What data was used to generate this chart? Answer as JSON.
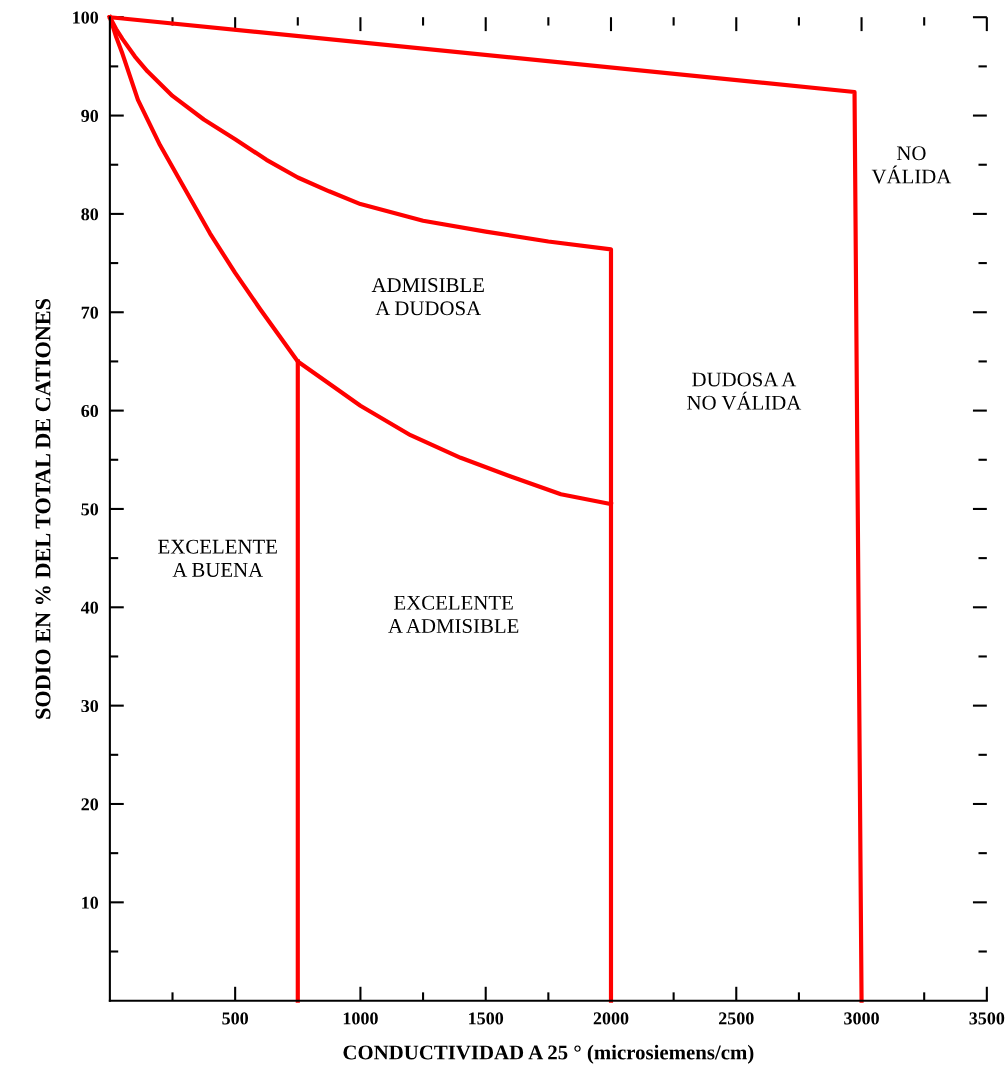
{
  "chart_data": {
    "type": "line",
    "xlabel": "CONDUCTIVIDAD A 25 ° (microsiemens/cm)",
    "ylabel": "SODIO EN % DEL TOTAL DE CATIONES",
    "xlim": [
      0,
      3500
    ],
    "ylim": [
      0,
      100
    ],
    "xticks": [
      {
        "value": 250,
        "label": null
      },
      500,
      {
        "value": 750,
        "label": null
      },
      1000,
      {
        "value": 1250,
        "label": null
      },
      1500,
      {
        "value": 1750,
        "label": null
      },
      2000,
      {
        "value": 2250,
        "label": null
      },
      2500,
      {
        "value": 2750,
        "label": null
      },
      3000,
      {
        "value": 3250,
        "label": null
      },
      3500
    ],
    "yticks": [
      {
        "value": 5,
        "label": null
      },
      10,
      {
        "value": 15,
        "label": null
      },
      20,
      {
        "value": 25,
        "label": null
      },
      30,
      {
        "value": 35,
        "label": null
      },
      40,
      {
        "value": 45,
        "label": null
      },
      50,
      {
        "value": 55,
        "label": null
      },
      60,
      {
        "value": 65,
        "label": null
      },
      70,
      {
        "value": 75,
        "label": null
      },
      80,
      {
        "value": 85,
        "label": null
      },
      90,
      {
        "value": 95,
        "label": null
      },
      100
    ],
    "grid": false,
    "marker": "none",
    "line_style": "solid",
    "series": [
      {
        "color": "#ff0000",
        "x": [
          0,
          2972,
          3000
        ],
        "values": [
          100,
          92.4,
          0
        ]
      },
      {
        "color": "#ff0000",
        "x": [
          0,
          25,
          50,
          100,
          150,
          250,
          375,
          500,
          625,
          750,
          875,
          1000,
          1250,
          1500,
          1750,
          2000,
          2000
        ],
        "values": [
          100,
          98.8,
          97.8,
          96,
          94.5,
          92,
          89.6,
          87.6,
          85.5,
          83.7,
          82.3,
          81,
          79.3,
          78.2,
          77.2,
          76.4,
          0
        ]
      },
      {
        "color": "#ff0000",
        "x": [
          0,
          25,
          50,
          112,
          200,
          300,
          400,
          500,
          600,
          750,
          900,
          1000,
          1200,
          1400,
          1600,
          1800,
          2000
        ],
        "values": [
          100,
          98,
          96.3,
          91.6,
          87,
          82.5,
          78,
          74,
          70.3,
          65,
          62.3,
          60.5,
          57.5,
          55.2,
          53.3,
          51.5,
          50.5
        ]
      },
      {
        "color": "#ff0000",
        "x": [
          750,
          750
        ],
        "values": [
          65,
          0
        ]
      }
    ],
    "annotations": [
      "EXCELENTE\nA BUENA",
      "EXCELENTE\nA ADMISIBLE",
      "ADMISIBLE\nA DUDOSA",
      "DUDOSA A\nNO VÁLIDA",
      "NO\nVÁLIDA"
    ]
  }
}
